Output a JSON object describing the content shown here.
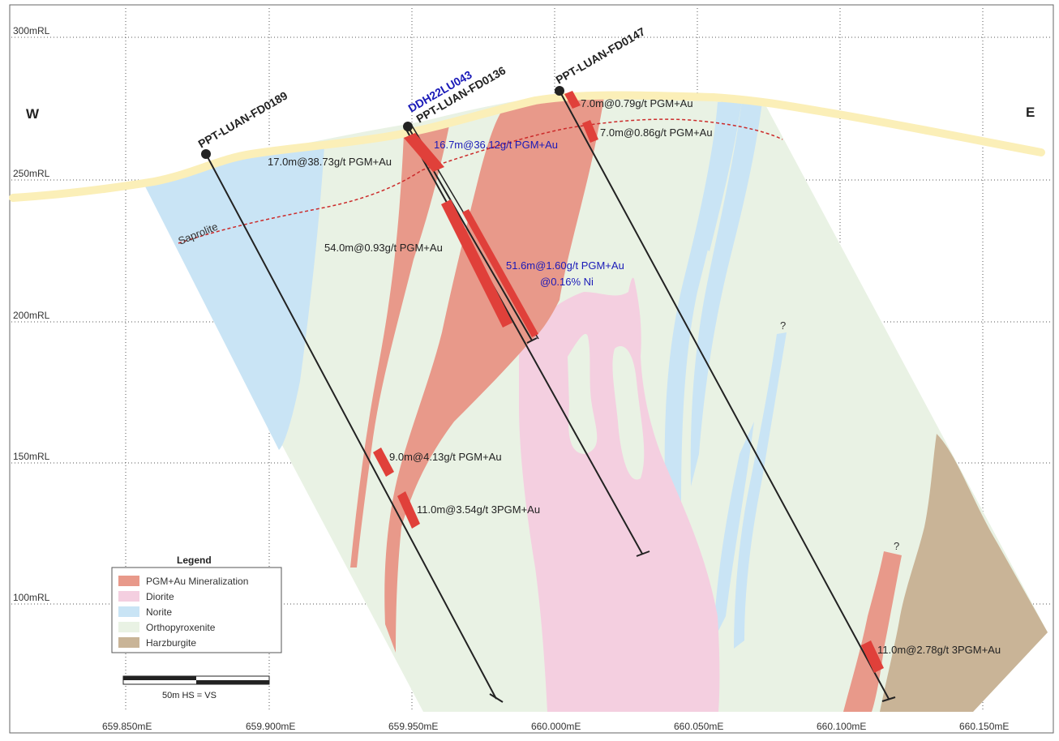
{
  "directions": {
    "west": "W",
    "east": "E"
  },
  "elevations": [
    "300mRL",
    "250mRL",
    "200mRL",
    "150mRL",
    "100mRL"
  ],
  "eastings": [
    "659.850mE",
    "659.900mE",
    "659.950mE",
    "660.000mE",
    "660.050mE",
    "660.100mE",
    "660.150mE"
  ],
  "saprolite_label": "Saprolite",
  "drillholes": {
    "fd0189": "PPT-LUAN-FD0189",
    "fd0136": "PPT-LUAN-FD0136",
    "ddh043": "DDH22LU043",
    "fd0147": "PPT-LUAN-FD0147"
  },
  "intercepts": {
    "i1": "17.0m@38.73g/t PGM+Au",
    "i2": "16.7m@36.12g/t PGM+Au",
    "i3": "54.0m@0.93g/t PGM+Au",
    "i4a": "51.6m@1.60g/t PGM+Au",
    "i4b": "@0.16% Ni",
    "i5": "7.0m@0.79g/t PGM+Au",
    "i6": "7.0m@0.86g/t PGM+Au",
    "i7": "9.0m@4.13g/t PGM+Au",
    "i8": "11.0m@3.54g/t 3PGM+Au",
    "i9": "11.0m@2.78g/t 3PGM+Au"
  },
  "question_mark": "?",
  "legend": {
    "title": "Legend",
    "items": [
      {
        "label": "PGM+Au Mineralization",
        "color": "#e8998a"
      },
      {
        "label": "Diorite",
        "color": "#f4cfe0"
      },
      {
        "label": "Norite",
        "color": "#c9e4f5"
      },
      {
        "label": "Orthopyroxenite",
        "color": "#e9f2e4"
      },
      {
        "label": "Harzburgite",
        "color": "#c9b497"
      }
    ]
  },
  "scale_bar": {
    "label": "50m  HS = VS"
  },
  "colors": {
    "mineralization": "#e8998a",
    "intercept": "#e0403a",
    "diorite": "#f4cfe0",
    "norite": "#c9e4f5",
    "orthopyroxenite": "#e9f2e4",
    "harzburgite": "#c9b497",
    "topography": "#fbefb8",
    "saprolite_line": "#cc2b2b",
    "hole_label_blue": "#1a1ab8"
  }
}
